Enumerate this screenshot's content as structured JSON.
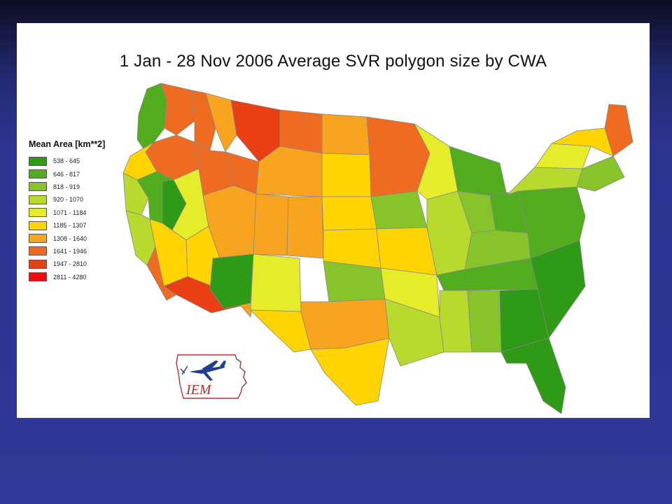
{
  "slide": {
    "title": "1 Jan - 28 Nov 2006 Average SVR polygon size by CWA"
  },
  "legend": {
    "title": "Mean Area [km**2]",
    "items": [
      {
        "label": "538 - 645",
        "color": "#2f9a16"
      },
      {
        "label": "646 - 817",
        "color": "#52ad1e"
      },
      {
        "label": "818 - 919",
        "color": "#86c42a"
      },
      {
        "label": "920 - 1070",
        "color": "#b8da2c"
      },
      {
        "label": "1071 - 1184",
        "color": "#e6ec2a"
      },
      {
        "label": "1185 - 1307",
        "color": "#ffd400"
      },
      {
        "label": "1308 - 1640",
        "color": "#f9a41e"
      },
      {
        "label": "1641 - 1946",
        "color": "#ef6b1f"
      },
      {
        "label": "1947 - 2810",
        "color": "#ea3f15"
      },
      {
        "label": "2811 - 4280",
        "color": "#ee0a10"
      }
    ]
  },
  "logo": {
    "text": "IEM",
    "icon": "iem-iowa-logo",
    "colors": {
      "outline": "#b23030",
      "plane": "#1e3f8f",
      "text": "#b23030"
    }
  },
  "map": {
    "boundary_color": "#888888",
    "regions": [
      {
        "name": "western-washington",
        "class": 2
      },
      {
        "name": "eastern-washington",
        "class": 8
      },
      {
        "name": "northern-idaho",
        "class": 8
      },
      {
        "name": "western-montana",
        "class": 7
      },
      {
        "name": "northeastern-montana",
        "class": 9
      },
      {
        "name": "central-montana",
        "class": 8
      },
      {
        "name": "oregon-coast",
        "class": 6
      },
      {
        "name": "eastern-oregon",
        "class": 8
      },
      {
        "name": "southern-idaho",
        "class": 8
      },
      {
        "name": "wyoming-west",
        "class": 8
      },
      {
        "name": "wyoming-east",
        "class": 7
      },
      {
        "name": "northern-california",
        "class": 4
      },
      {
        "name": "sacramento-valley",
        "class": 2
      },
      {
        "name": "reno",
        "class": 1
      },
      {
        "name": "great-basin",
        "class": 5
      },
      {
        "name": "utah",
        "class": 7
      },
      {
        "name": "western-colorado",
        "class": 7
      },
      {
        "name": "eastern-colorado",
        "class": 7
      },
      {
        "name": "southern-california-coast",
        "class": 4
      },
      {
        "name": "las-vegas",
        "class": 6
      },
      {
        "name": "los-angeles",
        "class": 8
      },
      {
        "name": "san-diego-desert",
        "class": 9
      },
      {
        "name": "northern-arizona",
        "class": 6
      },
      {
        "name": "southern-arizona",
        "class": 7
      },
      {
        "name": "albuquerque",
        "class": 1
      },
      {
        "name": "eastern-new-mexico",
        "class": 5
      },
      {
        "name": "west-texas",
        "class": 6
      },
      {
        "name": "north-dakota",
        "class": 7
      },
      {
        "name": "south-dakota",
        "class": 6
      },
      {
        "name": "nebraska",
        "class": 6
      },
      {
        "name": "kansas",
        "class": 6
      },
      {
        "name": "oklahoma",
        "class": 3
      },
      {
        "name": "north-texas",
        "class": 7
      },
      {
        "name": "south-texas",
        "class": 6
      },
      {
        "name": "minnesota",
        "class": 8
      },
      {
        "name": "iowa",
        "class": 3
      },
      {
        "name": "missouri",
        "class": 6
      },
      {
        "name": "arkansas",
        "class": 5
      },
      {
        "name": "louisiana",
        "class": 4
      },
      {
        "name": "wisconsin",
        "class": 5
      },
      {
        "name": "illinois",
        "class": 4
      },
      {
        "name": "indiana",
        "class": 3
      },
      {
        "name": "michigan",
        "class": 2
      },
      {
        "name": "ohio",
        "class": 2
      },
      {
        "name": "kentucky",
        "class": 3
      },
      {
        "name": "tennessee",
        "class": 2
      },
      {
        "name": "mississippi",
        "class": 4
      },
      {
        "name": "alabama",
        "class": 3
      },
      {
        "name": "georgia",
        "class": 1
      },
      {
        "name": "florida",
        "class": 1
      },
      {
        "name": "carolinas",
        "class": 1
      },
      {
        "name": "virginia",
        "class": 2
      },
      {
        "name": "pennsylvania",
        "class": 4
      },
      {
        "name": "new-york",
        "class": 5
      },
      {
        "name": "new-england-south",
        "class": 3
      },
      {
        "name": "new-england-north",
        "class": 6
      },
      {
        "name": "maine",
        "class": 8
      }
    ]
  }
}
